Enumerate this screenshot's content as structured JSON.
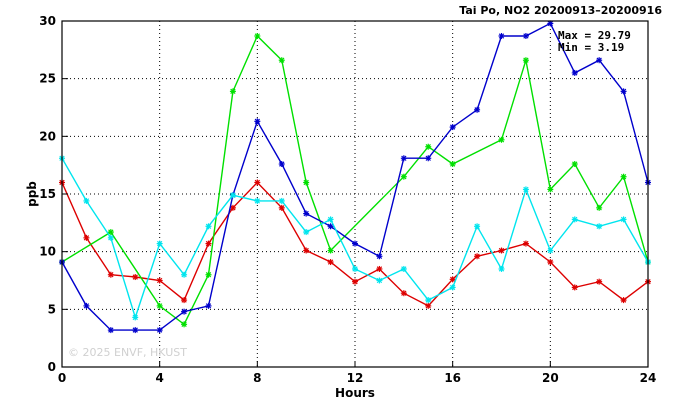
{
  "chart_data": {
    "type": "line",
    "title": "Tai Po, NO2 20200913–20200916",
    "xlabel": "Hours",
    "ylabel": "ppb",
    "xlim": [
      0,
      24
    ],
    "ylim": [
      0,
      30
    ],
    "x_ticks": [
      0,
      4,
      8,
      12,
      16,
      20,
      24
    ],
    "y_ticks": [
      0,
      5,
      10,
      15,
      20,
      25,
      30
    ],
    "grid": true,
    "stats": {
      "max_label": "Max = 29.79",
      "min_label": "Min =  3.19"
    },
    "watermark": "© 2025  ENVF, HKUST",
    "series": [
      {
        "color": "#dd0000",
        "x": [
          0,
          1,
          2,
          3,
          4,
          5,
          6,
          7,
          8,
          9,
          10,
          11,
          12,
          13,
          14,
          15,
          16,
          17,
          18,
          19,
          20,
          21,
          22,
          23,
          24
        ],
        "values": [
          16.0,
          11.2,
          8.0,
          7.8,
          7.5,
          5.8,
          10.7,
          13.8,
          16.0,
          13.8,
          10.1,
          9.1,
          7.4,
          8.5,
          6.4,
          5.3,
          7.6,
          9.6,
          10.1,
          10.7,
          9.1,
          6.9,
          7.4,
          5.8,
          7.4
        ]
      },
      {
        "color": "#00e000",
        "x": [
          0,
          2,
          4,
          5,
          6,
          7,
          8,
          9,
          10,
          11,
          14,
          15,
          16,
          18,
          19,
          20,
          21,
          22,
          23,
          24
        ],
        "values": [
          9.1,
          11.7,
          5.3,
          3.7,
          8.0,
          23.9,
          28.7,
          26.6,
          16.0,
          10.1,
          16.5,
          19.1,
          17.6,
          19.7,
          26.6,
          15.4,
          17.6,
          13.8,
          16.5,
          9.1
        ]
      },
      {
        "color": "#0000cc",
        "x": [
          0,
          1,
          2,
          3,
          4,
          5,
          6,
          7,
          8,
          9,
          10,
          11,
          12,
          13,
          14,
          15,
          16,
          17,
          18,
          19,
          20,
          21,
          22,
          23,
          24
        ],
        "values": [
          9.1,
          5.3,
          3.2,
          3.2,
          3.2,
          4.8,
          5.3,
          14.9,
          21.3,
          17.6,
          13.3,
          12.2,
          10.7,
          9.6,
          18.1,
          18.1,
          20.8,
          22.3,
          28.7,
          28.7,
          29.79,
          25.5,
          26.6,
          23.9,
          16.0
        ]
      },
      {
        "color": "#00e5ee",
        "x": [
          0,
          1,
          2,
          3,
          4,
          5,
          6,
          7,
          8,
          9,
          10,
          11,
          12,
          13,
          14,
          15,
          16,
          17,
          18,
          19,
          20,
          21,
          22,
          23,
          24
        ],
        "values": [
          18.1,
          14.4,
          11.2,
          4.3,
          10.7,
          8.0,
          12.2,
          14.9,
          14.4,
          14.4,
          11.7,
          12.8,
          8.5,
          7.5,
          8.5,
          5.8,
          6.9,
          12.2,
          8.5,
          15.4,
          10.1,
          12.8,
          12.2,
          12.8,
          9.1
        ]
      }
    ]
  }
}
